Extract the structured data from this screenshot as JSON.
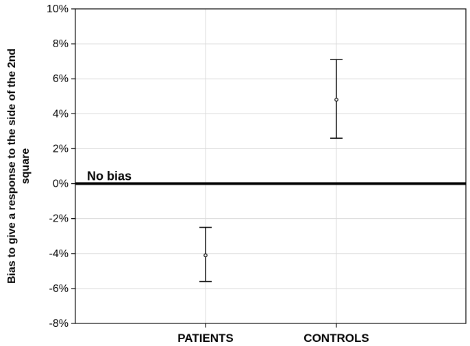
{
  "chart_data": {
    "type": "scatter",
    "title": "",
    "xlabel": "",
    "ylabel": "Bias to give a response to the side of the 2nd square",
    "ylim": [
      -0.08,
      0.1
    ],
    "y_ticks": [
      0.1,
      0.08,
      0.06,
      0.04,
      0.02,
      0.0,
      -0.02,
      -0.04,
      -0.06,
      -0.08
    ],
    "y_tick_labels": [
      "10%",
      "8%",
      "6%",
      "4%",
      "2%",
      "0%",
      "-2%",
      "-4%",
      "-6%",
      "-8%"
    ],
    "categories": [
      "PATIENTS",
      "CONTROLS"
    ],
    "points": [
      {
        "category": "PATIENTS",
        "mean": -0.041,
        "upper": -0.025,
        "lower": -0.056
      },
      {
        "category": "CONTROLS",
        "mean": 0.048,
        "upper": 0.071,
        "lower": 0.026
      }
    ],
    "reference_line": {
      "y": 0.0,
      "label": "No bias"
    },
    "grid": true,
    "legend": "none"
  }
}
